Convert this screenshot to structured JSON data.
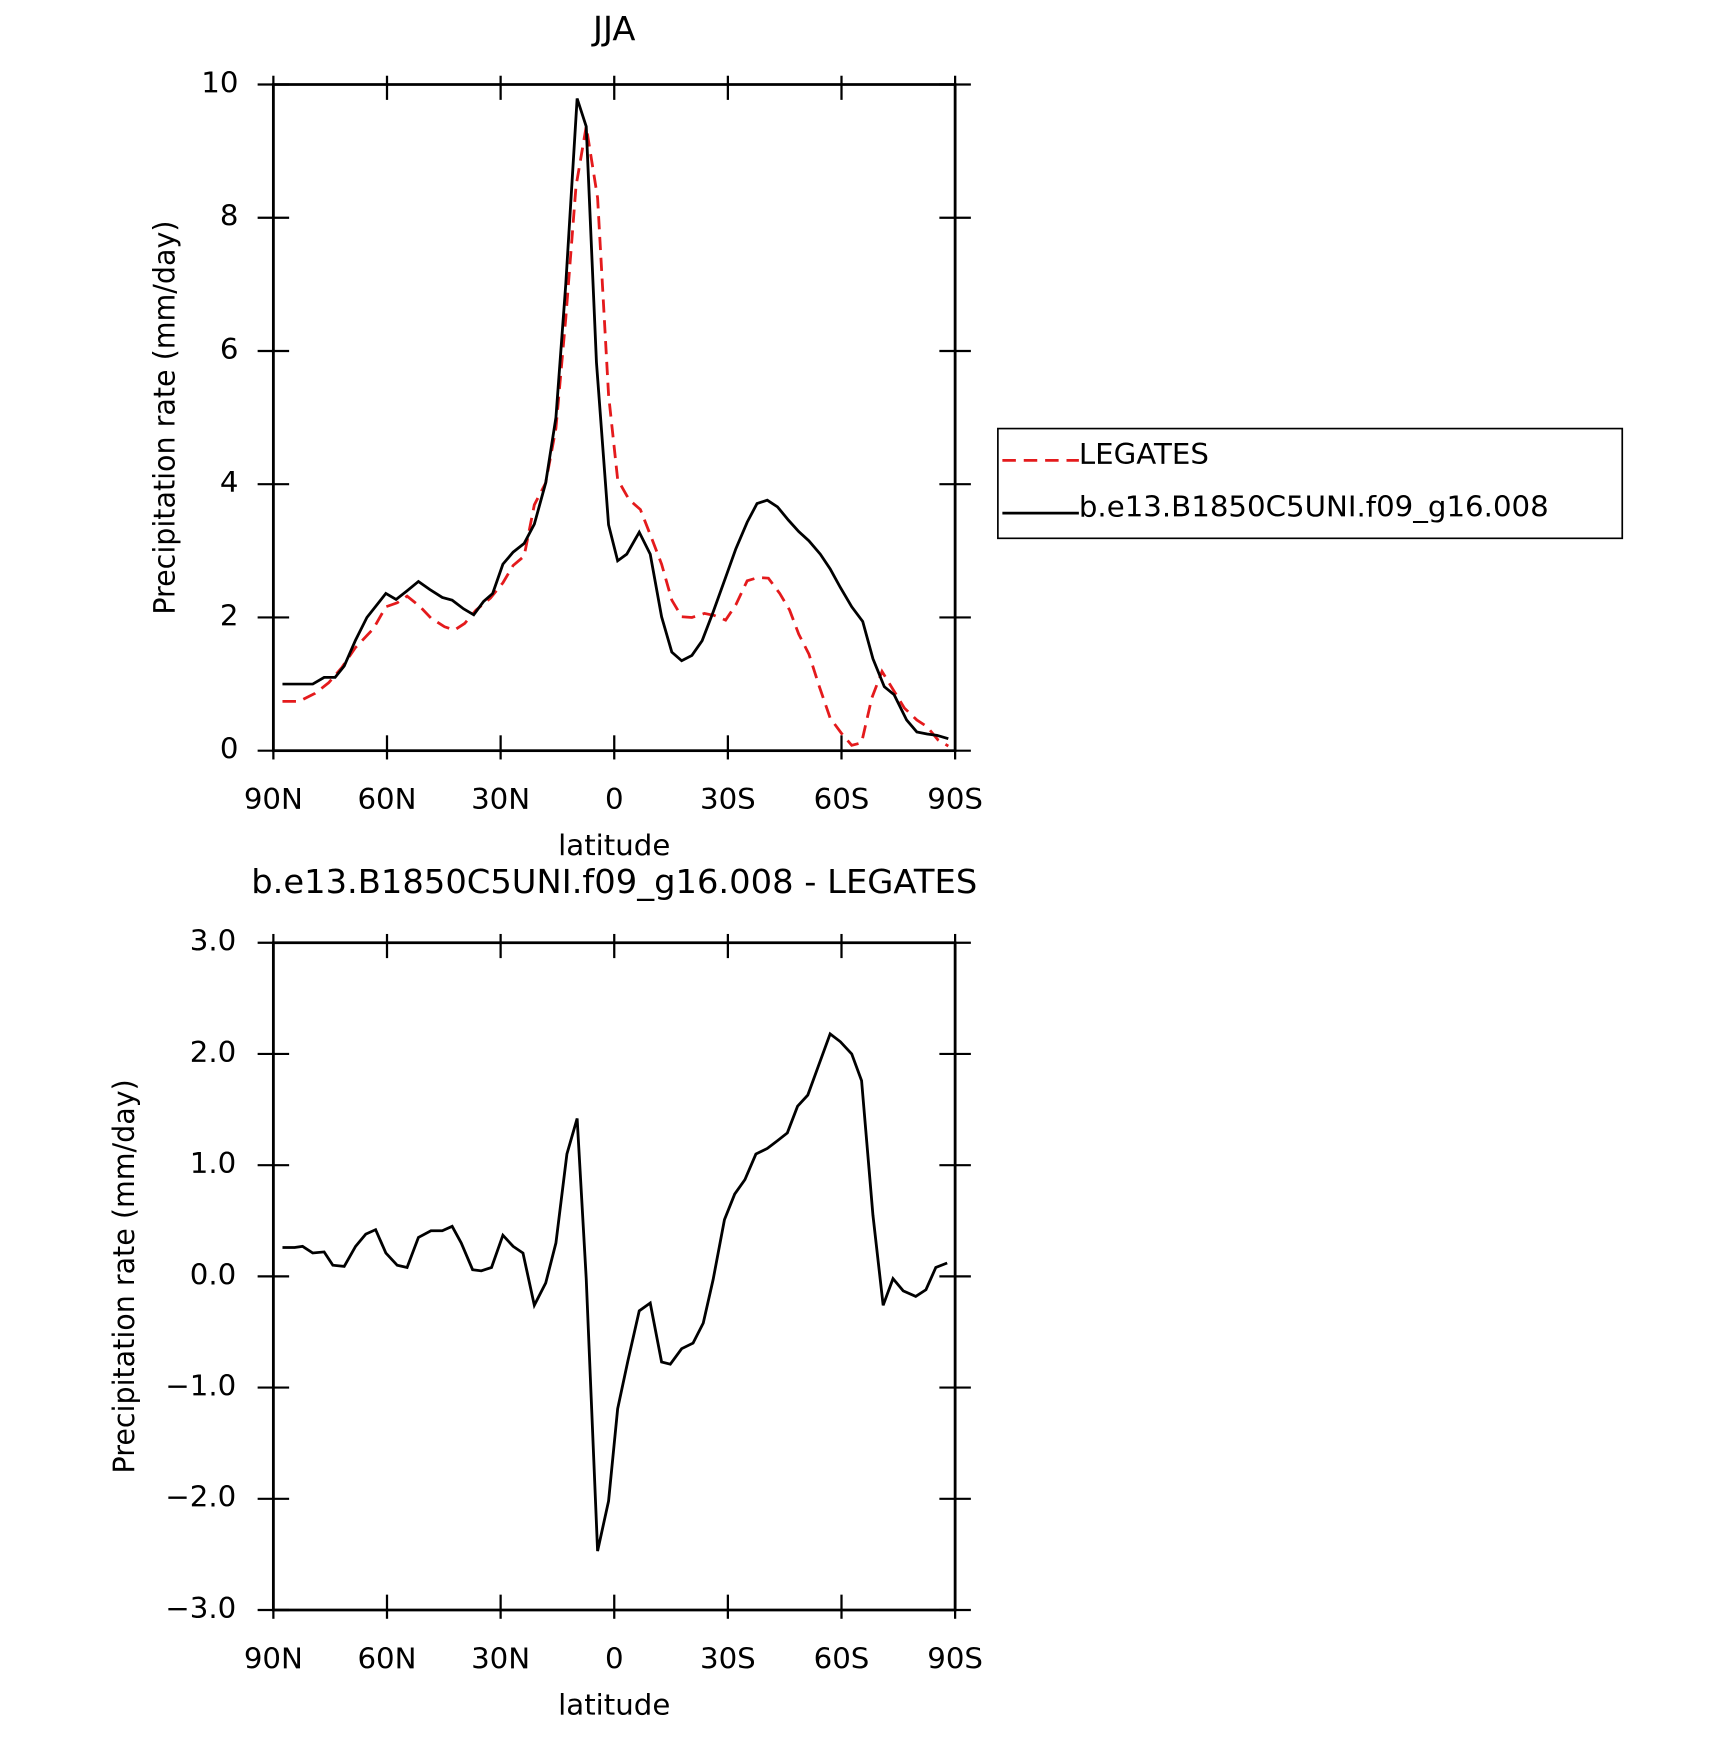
{
  "chart_data": [
    {
      "type": "line",
      "title": "JJA",
      "xlabel": "latitude",
      "ylabel": "Precipitation rate (mm/day)",
      "xlim": [
        90,
        -90
      ],
      "ylim": [
        0,
        10
      ],
      "xticks": [
        {
          "value": 90,
          "label": "90N"
        },
        {
          "value": 60,
          "label": "60N"
        },
        {
          "value": 30,
          "label": "30N"
        },
        0,
        {
          "value": -30,
          "label": "30S"
        },
        {
          "value": -60,
          "label": "60S"
        },
        {
          "value": -90,
          "label": "90S"
        }
      ],
      "yticks": [
        0,
        2,
        4,
        6,
        8,
        10
      ],
      "legend": "right",
      "series": [
        {
          "name": "LEGATES",
          "color": "#e41a1c",
          "linestyle": "dashed",
          "x": [
            87.6,
            83.2,
            79.0,
            75.4,
            71.9,
            68.3,
            63.6,
            60.3,
            57.3,
            54.7,
            51.4,
            48.4,
            44.8,
            42.2,
            39.5,
            36.5,
            32.7,
            29.4,
            26.7,
            23.8,
            21.1,
            18.1,
            15.4,
            12.8,
            10.1,
            7.4,
            4.4,
            1.5,
            -0.9,
            -3.9,
            -6.9,
            -9.8,
            -12.5,
            -15.2,
            -17.8,
            -20.5,
            -23.8,
            -26.4,
            -29.4,
            -32.1,
            -35.1,
            -38.0,
            -40.7,
            -43.7,
            -46.3,
            -48.7,
            -51.4,
            -54.1,
            -57.0,
            -60.0,
            -62.7,
            -65.3,
            -68.0,
            -70.7,
            -73.6,
            -76.6,
            -79.9,
            -82.6,
            -85.5,
            -88.2
          ],
          "values": [
            0.74,
            0.74,
            0.86,
            1.02,
            1.25,
            1.55,
            1.83,
            2.16,
            2.22,
            2.32,
            2.17,
            1.99,
            1.86,
            1.81,
            1.91,
            2.11,
            2.29,
            2.52,
            2.78,
            2.92,
            3.69,
            4.02,
            4.84,
            6.49,
            8.47,
            9.37,
            8.3,
            5.34,
            4.07,
            3.77,
            3.62,
            3.2,
            2.8,
            2.26,
            2.01,
            2.0,
            2.06,
            2.03,
            1.96,
            2.19,
            2.55,
            2.6,
            2.59,
            2.36,
            2.11,
            1.75,
            1.45,
            0.97,
            0.49,
            0.26,
            0.08,
            0.12,
            0.79,
            1.19,
            0.92,
            0.64,
            0.46,
            0.36,
            0.16,
            0.07
          ]
        },
        {
          "name": "b.e13.B1850C5UNI.f09_g16.008",
          "color": "#000000",
          "linestyle": "solid",
          "x": [
            87.6,
            79.6,
            76.6,
            73.7,
            71.3,
            68.3,
            65.3,
            60.3,
            57.6,
            54.7,
            51.7,
            48.7,
            45.4,
            42.8,
            39.8,
            37.1,
            34.5,
            32.1,
            29.4,
            26.7,
            23.8,
            21.1,
            18.1,
            15.4,
            12.8,
            9.8,
            7.4,
            4.7,
            1.5,
            -0.9,
            -3.3,
            -6.6,
            -9.5,
            -12.5,
            -15.2,
            -17.8,
            -20.5,
            -23.2,
            -26.1,
            -29.4,
            -32.1,
            -35.1,
            -37.7,
            -40.4,
            -43.1,
            -46.0,
            -48.7,
            -51.4,
            -54.4,
            -57.0,
            -59.7,
            -62.7,
            -65.6,
            -68.3,
            -71.3,
            -73.9,
            -77.2,
            -79.9,
            -82.6,
            -85.2,
            -88.2
          ],
          "values": [
            1.0,
            1.0,
            1.1,
            1.1,
            1.27,
            1.66,
            2.0,
            2.36,
            2.27,
            2.4,
            2.54,
            2.42,
            2.3,
            2.26,
            2.13,
            2.04,
            2.24,
            2.36,
            2.8,
            2.98,
            3.11,
            3.4,
            4.02,
            5.0,
            7.0,
            9.79,
            9.37,
            5.83,
            3.39,
            2.85,
            2.95,
            3.28,
            2.95,
            2.01,
            1.48,
            1.35,
            1.43,
            1.65,
            2.08,
            2.6,
            3.03,
            3.43,
            3.71,
            3.76,
            3.66,
            3.46,
            3.29,
            3.15,
            2.95,
            2.73,
            2.45,
            2.16,
            1.94,
            1.38,
            0.96,
            0.84,
            0.46,
            0.28,
            0.25,
            0.23,
            0.18
          ]
        }
      ]
    },
    {
      "type": "line",
      "title": "b.e13.B1850C5UNI.f09_g16.008 - LEGATES",
      "xlabel": "latitude",
      "ylabel": "Precipitation rate (mm/day)",
      "xlim": [
        90,
        -90
      ],
      "ylim": [
        -3,
        3
      ],
      "xticks": [
        {
          "value": 90,
          "label": "90N"
        },
        {
          "value": 60,
          "label": "60N"
        },
        {
          "value": 30,
          "label": "30N"
        },
        0,
        {
          "value": -30,
          "label": "30S"
        },
        {
          "value": -60,
          "label": "60S"
        },
        {
          "value": -90,
          "label": "90S"
        }
      ],
      "yticks": [
        {
          "value": -3,
          "label": "−3.0"
        },
        {
          "value": -2,
          "label": "−2.0"
        },
        {
          "value": -1,
          "label": "−1.0"
        },
        {
          "value": 0,
          "label": "0.0"
        },
        {
          "value": 1,
          "label": "1.0"
        },
        {
          "value": 2,
          "label": "2.0"
        },
        {
          "value": 3,
          "label": "3.0"
        }
      ],
      "series": [
        {
          "color": "#000000",
          "linestyle": "solid",
          "x": [
            87.6,
            84.4,
            82.3,
            79.6,
            76.6,
            74.3,
            71.3,
            68.3,
            65.6,
            63.0,
            60.3,
            57.3,
            54.7,
            51.7,
            48.4,
            45.4,
            42.8,
            40.4,
            37.4,
            35.1,
            32.4,
            29.4,
            26.7,
            24.1,
            21.1,
            18.1,
            15.4,
            12.5,
            9.8,
            7.4,
            4.4,
            1.5,
            -0.9,
            -3.6,
            -6.6,
            -9.5,
            -12.5,
            -14.8,
            -17.8,
            -20.8,
            -23.5,
            -26.1,
            -29.1,
            -31.8,
            -34.5,
            -37.4,
            -40.4,
            -43.1,
            -45.7,
            -48.4,
            -51.1,
            -54.1,
            -57.0,
            -59.7,
            -62.7,
            -65.3,
            -68.3,
            -71.0,
            -73.6,
            -76.3,
            -79.6,
            -82.3,
            -84.9,
            -87.9
          ],
          "values": [
            0.26,
            0.26,
            0.27,
            0.21,
            0.22,
            0.1,
            0.09,
            0.27,
            0.38,
            0.42,
            0.21,
            0.1,
            0.08,
            0.35,
            0.41,
            0.41,
            0.45,
            0.3,
            0.06,
            0.05,
            0.08,
            0.37,
            0.27,
            0.21,
            -0.26,
            -0.06,
            0.3,
            1.1,
            1.42,
            -0.02,
            -2.47,
            -2.02,
            -1.19,
            -0.76,
            -0.31,
            -0.24,
            -0.77,
            -0.79,
            -0.65,
            -0.6,
            -0.42,
            -0.03,
            0.51,
            0.74,
            0.87,
            1.1,
            1.15,
            1.22,
            1.29,
            1.53,
            1.63,
            1.91,
            2.18,
            2.11,
            2.0,
            1.76,
            0.55,
            -0.26,
            -0.02,
            -0.13,
            -0.18,
            -0.12,
            0.08,
            0.12
          ]
        }
      ]
    }
  ]
}
